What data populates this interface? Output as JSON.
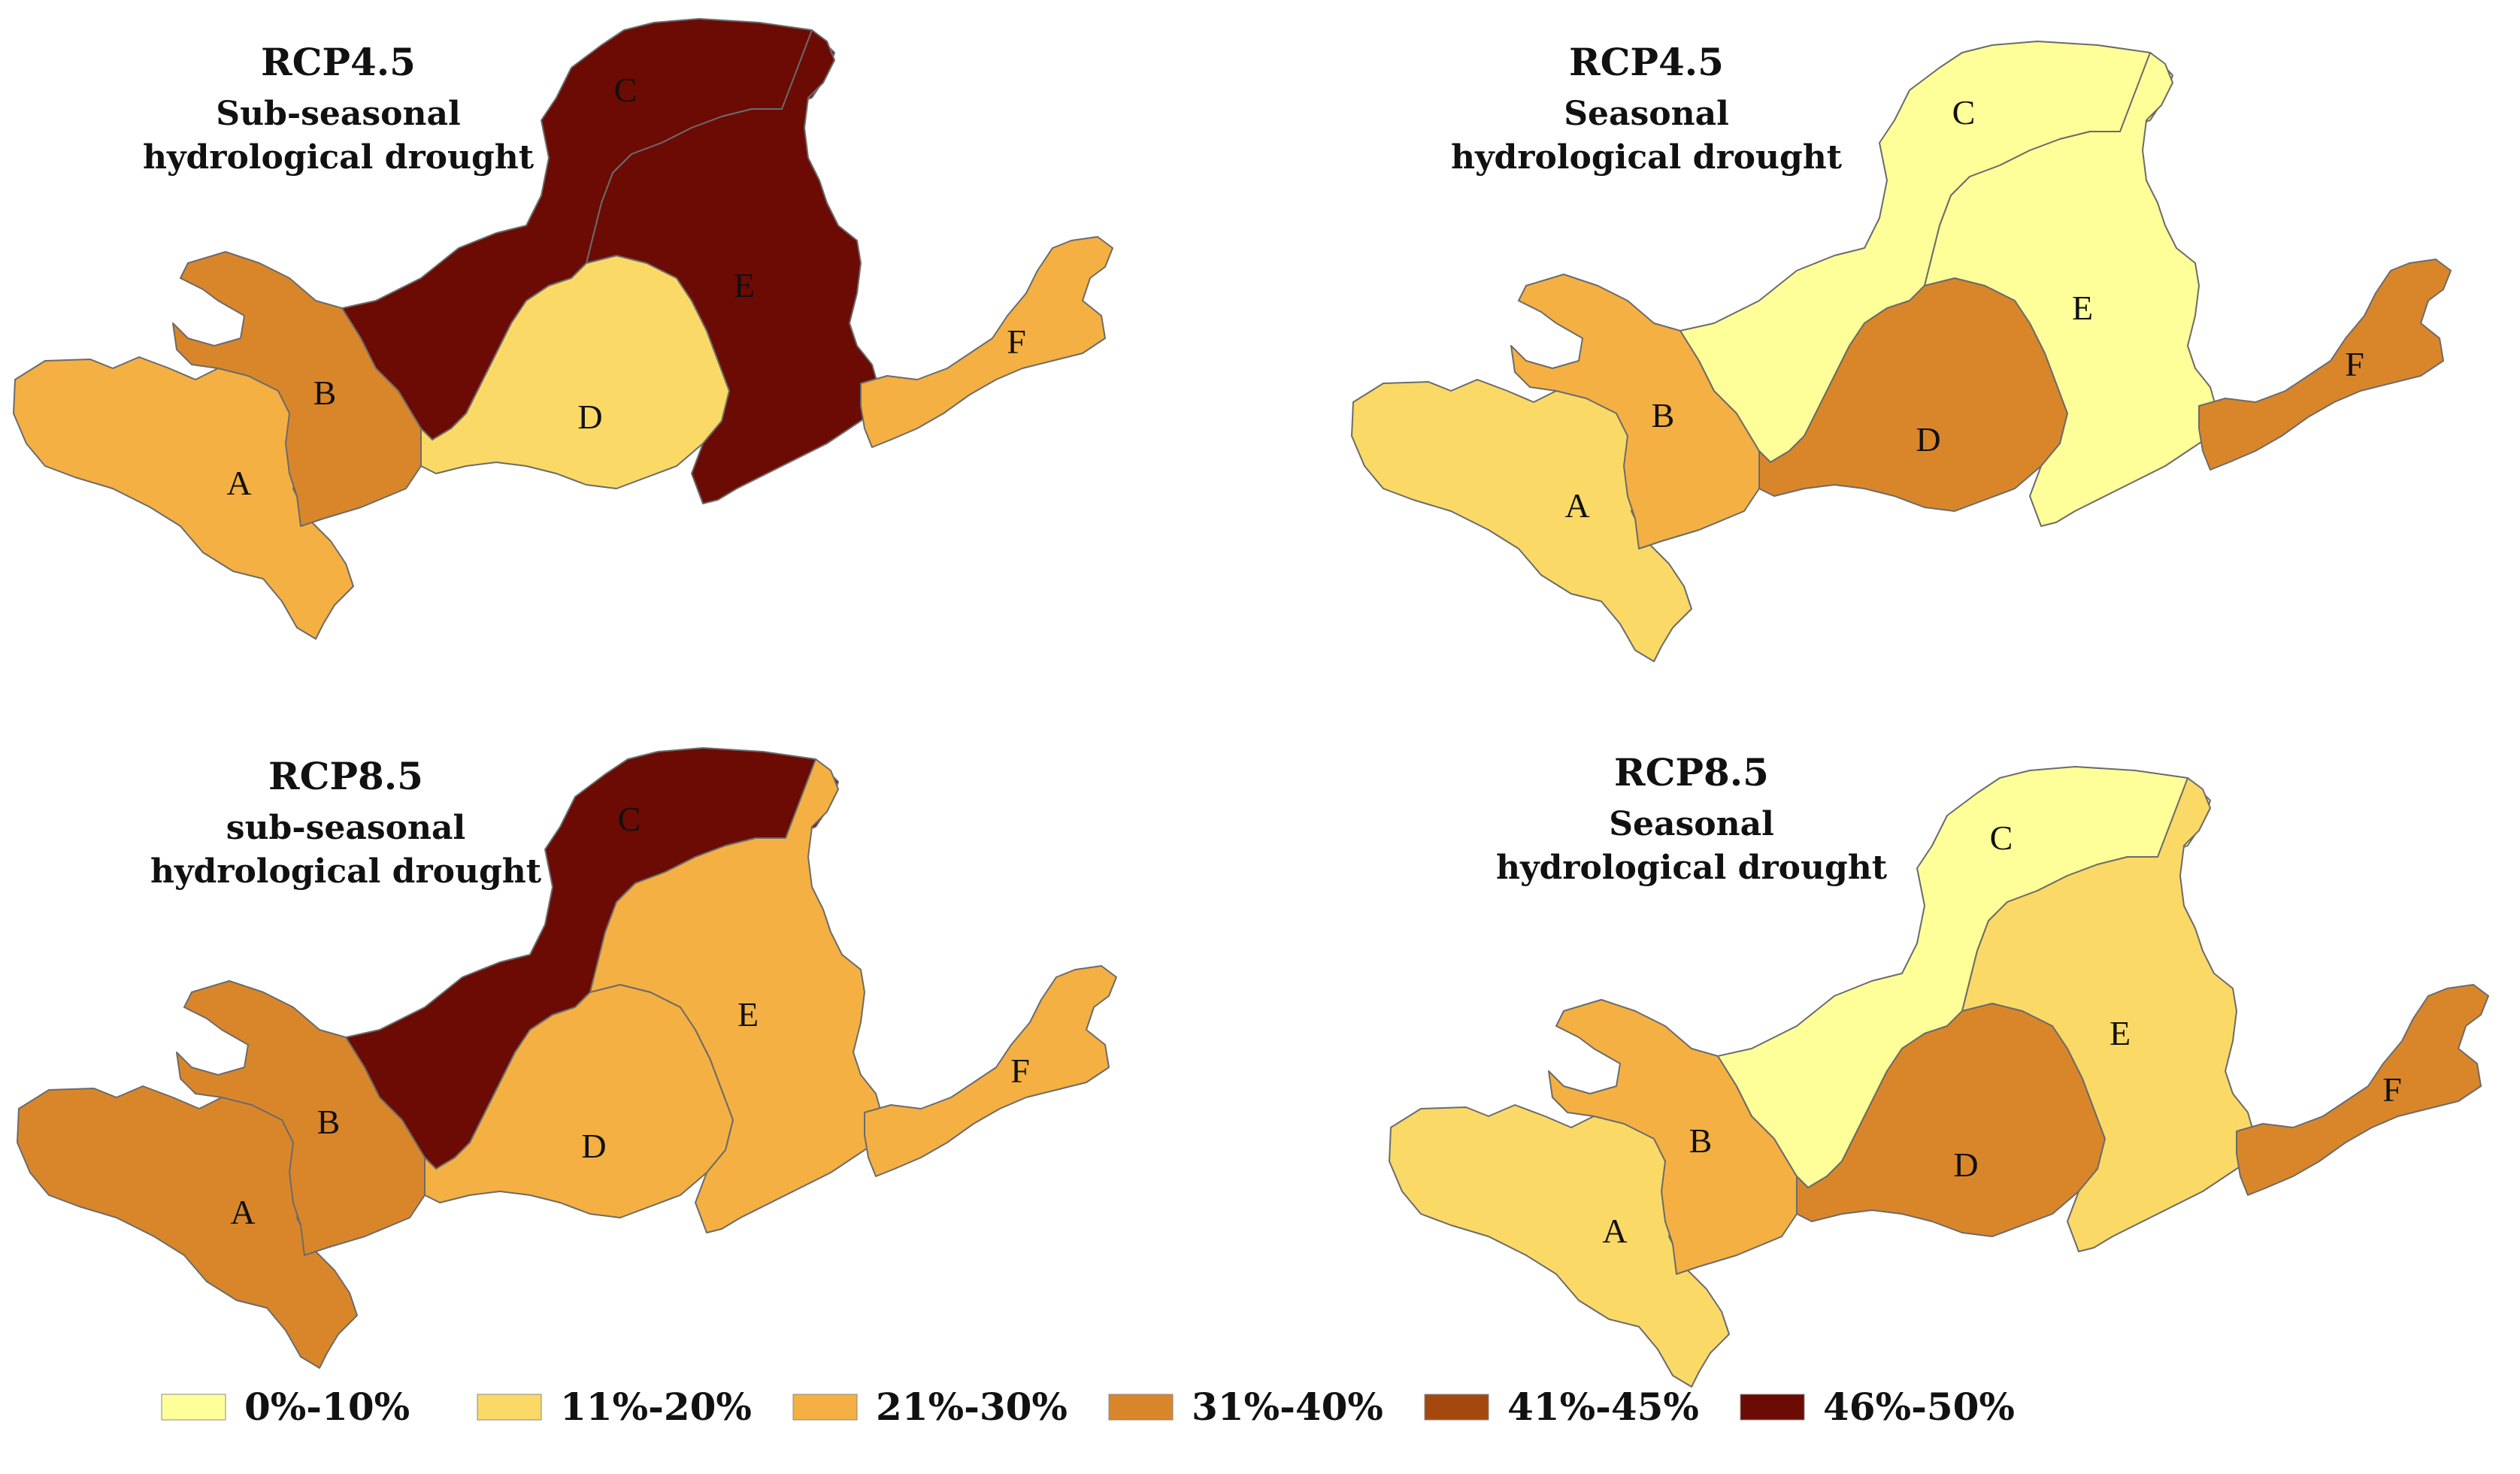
{
  "classes": [
    {
      "label": "0%-10%",
      "color": "#FFFF99"
    },
    {
      "label": "11%-20%",
      "color": "#FAD966"
    },
    {
      "label": "21%-30%",
      "color": "#F4B042"
    },
    {
      "label": "31%-40%",
      "color": "#D9862A"
    },
    {
      "label": "41%-45%",
      "color": "#A5480E"
    },
    {
      "label": "46%-50%",
      "color": "#6B0B04"
    }
  ],
  "maps": [
    {
      "title_line1": "RCP4.5",
      "title_line2": "Sub-seasonal",
      "title_line3": "hydrological drought",
      "regions": {
        "A": 2,
        "B": 3,
        "C": 5,
        "D": 1,
        "E": 5,
        "F": 2
      }
    },
    {
      "title_line1": "RCP4.5",
      "title_line2": "Seasonal",
      "title_line3": "hydrological drought",
      "regions": {
        "A": 1,
        "B": 2,
        "C": 0,
        "D": 3,
        "E": 0,
        "F": 3
      }
    },
    {
      "title_line1": "RCP8.5",
      "title_line2": "sub-seasonal",
      "title_line3": "hydrological drought",
      "regions": {
        "A": 3,
        "B": 3,
        "C": 5,
        "D": 2,
        "E": 2,
        "F": 2
      }
    },
    {
      "title_line1": "RCP8.5",
      "title_line2": "Seasonal",
      "title_line3": "hydrological drought",
      "regions": {
        "A": 1,
        "B": 2,
        "C": 0,
        "D": 3,
        "E": 1,
        "F": 3
      }
    }
  ],
  "region_names": [
    "A",
    "B",
    "C",
    "D",
    "E",
    "F"
  ]
}
